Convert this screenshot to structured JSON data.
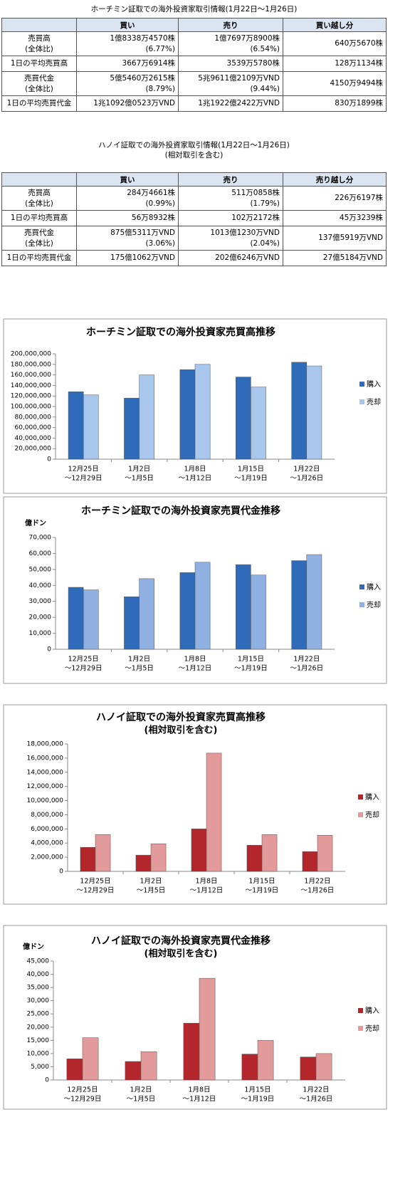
{
  "tables": [
    {
      "title": [
        "ホーチミン証取での海外投資家取引情報(1月22日～1月26日)"
      ],
      "header": [
        "",
        "買い",
        "売り",
        "買い越し分"
      ],
      "rows": [
        [
          [
            "売買高",
            "(全体比)"
          ],
          [
            "1億8338万4570株",
            "(6.77%)"
          ],
          [
            "1億7697万8900株",
            "(6.54%)"
          ],
          [
            "640万5670株"
          ]
        ],
        [
          [
            "1日の平均売買高"
          ],
          [
            "3667万6914株"
          ],
          [
            "3539万5780株"
          ],
          [
            "128万1134株"
          ]
        ],
        [
          [
            "売買代金",
            "(全体比)"
          ],
          [
            "5億5460万2615株",
            "(8.79%)"
          ],
          [
            "5兆9611億2109万VND",
            "(9.44%)"
          ],
          [
            "4150万9494株"
          ]
        ],
        [
          [
            "1日の平均売買代金"
          ],
          [
            "1兆1092億0523万VND"
          ],
          [
            "1兆1922億2422万VND"
          ],
          [
            "830万1899株"
          ]
        ]
      ]
    },
    {
      "title": [
        "ハノイ証取での海外投資家取引情報(1月22日～1月26日)",
        "(相対取引を含む)"
      ],
      "header": [
        "",
        "買い",
        "売り",
        "売り越し分"
      ],
      "rows": [
        [
          [
            "売買高",
            "(全体比)"
          ],
          [
            "284万4661株",
            "(0.99%)"
          ],
          [
            "511万0858株",
            "(1.79%)"
          ],
          [
            "226万6197株"
          ]
        ],
        [
          [
            "1日の平均売買高"
          ],
          [
            "56万8932株"
          ],
          [
            "102万2172株"
          ],
          [
            "45万3239株"
          ]
        ],
        [
          [
            "売買代金",
            "(全体比)"
          ],
          [
            "875億5311万VND",
            "(3.06%)"
          ],
          [
            "1013億1230万VND",
            "(2.04%)"
          ],
          [
            "137億5919万VND"
          ]
        ],
        [
          [
            "1日の平均売買代金"
          ],
          [
            "175億1062万VND"
          ],
          [
            "202億6246万VND"
          ],
          [
            "27億5184万VND"
          ]
        ]
      ]
    }
  ],
  "chart_data": [
    {
      "type": "bar",
      "title": "ホーチミン証取での海外投資家売買高推移",
      "categories": [
        [
          "12月25日",
          "～12月29日"
        ],
        [
          "1月2日",
          "～1月5日"
        ],
        [
          "1月8日",
          "～1月12日"
        ],
        [
          "1月15日",
          "～1月19日"
        ],
        [
          "1月22日",
          "～1月26日"
        ]
      ],
      "series": [
        {
          "name": "購入",
          "color": "#2f6bb8",
          "values": [
            128000000,
            116000000,
            170000000,
            156000000,
            184000000
          ]
        },
        {
          "name": "売却",
          "color": "#a9c6ec",
          "values": [
            122000000,
            160000000,
            180000000,
            137000000,
            177000000
          ]
        }
      ],
      "ylim": [
        0,
        200000000
      ],
      "yticks": [
        0,
        {
          "value": 20000000,
          "label": "20,000,000"
        },
        {
          "value": 40000000,
          "label": "40,000,000"
        },
        {
          "value": 60000000,
          "label": "60,000,000"
        },
        {
          "value": 80000000,
          "label": "80,000,000"
        },
        {
          "value": 100000000,
          "label": "100,000,000"
        },
        {
          "value": 120000000,
          "label": "120,000,000"
        },
        {
          "value": 140000000,
          "label": "140,000,000"
        },
        {
          "value": 160000000,
          "label": "160,000,000"
        },
        {
          "value": 180000000,
          "label": "180,000,000"
        },
        {
          "value": 200000000,
          "label": "200,000,000"
        }
      ]
    },
    {
      "type": "bar",
      "title": "ホーチミン証取での海外投資家売買代金推移",
      "y_label": "億ドン",
      "categories": [
        [
          "12月25日",
          "～12月29日"
        ],
        [
          "1月2日",
          "～1月5日"
        ],
        [
          "1月8日",
          "～1月12日"
        ],
        [
          "1月15日",
          "～1月19日"
        ],
        [
          "1月22日",
          "～1月26日"
        ]
      ],
      "series": [
        {
          "name": "購入",
          "color": "#2f6bb8",
          "values": [
            38800,
            32900,
            48000,
            53000,
            55500
          ]
        },
        {
          "name": "売却",
          "color": "#8fb0e0",
          "values": [
            37200,
            44200,
            54500,
            46500,
            59300
          ]
        }
      ],
      "ylim": [
        0,
        70000
      ],
      "yticks": [
        0,
        {
          "value": 10000,
          "label": "10,000"
        },
        {
          "value": 20000,
          "label": "20,000"
        },
        {
          "value": 30000,
          "label": "30,000"
        },
        {
          "value": 40000,
          "label": "40,000"
        },
        {
          "value": 50000,
          "label": "50,000"
        },
        {
          "value": 60000,
          "label": "60,000"
        },
        {
          "value": 70000,
          "label": "70,000"
        }
      ]
    },
    {
      "type": "bar",
      "title": "ハノイ証取での海外投資家売買高推移",
      "subtitle": "(相対取引を含む)",
      "categories": [
        [
          "12月25日",
          "～12月29日"
        ],
        [
          "1月2日",
          "～1月5日"
        ],
        [
          "1月8日",
          "～1月12日"
        ],
        [
          "1月15日",
          "～1月19日"
        ],
        [
          "1月22日",
          "～1月26日"
        ]
      ],
      "series": [
        {
          "name": "購入",
          "color": "#b3262c",
          "values": [
            3400000,
            2300000,
            6000000,
            3700000,
            2800000
          ]
        },
        {
          "name": "売却",
          "color": "#e39a9a",
          "values": [
            5200000,
            3900000,
            16700000,
            5200000,
            5100000
          ]
        }
      ],
      "ylim": [
        0,
        18000000
      ],
      "yticks": [
        0,
        {
          "value": 2000000,
          "label": "2,000,000"
        },
        {
          "value": 4000000,
          "label": "4,000,000"
        },
        {
          "value": 6000000,
          "label": "6,000,000"
        },
        {
          "value": 8000000,
          "label": "8,000,000"
        },
        {
          "value": 10000000,
          "label": "10,000,000"
        },
        {
          "value": 12000000,
          "label": "12,000,000"
        },
        {
          "value": 14000000,
          "label": "14,000,000"
        },
        {
          "value": 16000000,
          "label": "16,000,000"
        },
        {
          "value": 18000000,
          "label": "18,000,000"
        }
      ]
    },
    {
      "type": "bar",
      "title": "ハノイ証取での海外投資家売買代金推移",
      "subtitle": "(相対取引を含む)",
      "y_label": "億ドン",
      "categories": [
        [
          "12月25日",
          "～12月29日"
        ],
        [
          "1月2日",
          "～1月5日"
        ],
        [
          "1月8日",
          "～1月12日"
        ],
        [
          "1月15日",
          "～1月19日"
        ],
        [
          "1月22日",
          "～1月26日"
        ]
      ],
      "series": [
        {
          "name": "購入",
          "color": "#b3262c",
          "values": [
            8000,
            7000,
            21500,
            9800,
            8700
          ]
        },
        {
          "name": "売却",
          "color": "#e39a9a",
          "values": [
            16000,
            10700,
            38500,
            15000,
            10000
          ]
        }
      ],
      "ylim": [
        0,
        45000
      ],
      "yticks": [
        0,
        {
          "value": 5000,
          "label": "5,000"
        },
        {
          "value": 10000,
          "label": "10,000"
        },
        {
          "value": 15000,
          "label": "15,000"
        },
        {
          "value": 20000,
          "label": "20,000"
        },
        {
          "value": 25000,
          "label": "25,000"
        },
        {
          "value": 30000,
          "label": "30,000"
        },
        {
          "value": 35000,
          "label": "35,000"
        },
        {
          "value": 40000,
          "label": "40,000"
        },
        {
          "value": 45000,
          "label": "45,000"
        }
      ]
    }
  ]
}
